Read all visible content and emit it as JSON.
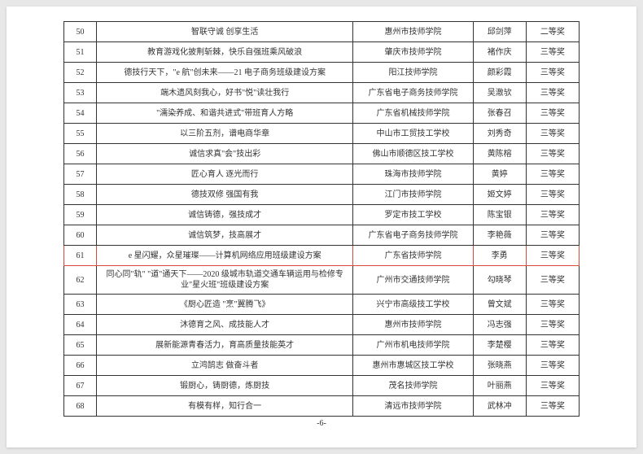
{
  "pageNumber": "-6-",
  "highlightRow": 61,
  "columns": {
    "widths": [
      "38px",
      "300px",
      "140px",
      "62px",
      "62px"
    ]
  },
  "rows": [
    {
      "num": "50",
      "title": "智联守诚 创享生活",
      "school": "惠州市技师学院",
      "person": "邱剑萍",
      "award": "二等奖"
    },
    {
      "num": "51",
      "title": "教育游戏化披荆斩棘，快乐自强班乘风破浪",
      "school": "肇庆市技师学院",
      "person": "褚作庆",
      "award": "三等奖"
    },
    {
      "num": "52",
      "title": "德技行天下，\"e 航\"创未来——21 电子商务班级建设方案",
      "school": "阳江技师学院",
      "person": "颜彩霞",
      "award": "三等奖"
    },
    {
      "num": "53",
      "title": "端木遗风刻我心，好书\"悦\"读壮我行",
      "school": "广东省电子商务技师学院",
      "person": "吴澈欤",
      "award": "三等奖"
    },
    {
      "num": "54",
      "title": "\"濡染养成、和谐共进式\"带班育人方略",
      "school": "广东省机械技师学院",
      "person": "张春召",
      "award": "三等奖"
    },
    {
      "num": "55",
      "title": "以三阶五剂，谱电商华章",
      "school": "中山市工贸技工学校",
      "person": "刘秀奇",
      "award": "三等奖"
    },
    {
      "num": "56",
      "title": "诚信求真\"会\"技出彩",
      "school": "佛山市顺德区技工学校",
      "person": "黄陈榕",
      "award": "三等奖"
    },
    {
      "num": "57",
      "title": "匠心育人 逐光而行",
      "school": "珠海市技师学院",
      "person": "黄婷",
      "award": "三等奖"
    },
    {
      "num": "58",
      "title": "德技双修 强国有我",
      "school": "江门市技师学院",
      "person": "姬文婷",
      "award": "三等奖"
    },
    {
      "num": "59",
      "title": "诚信铸德，强技成才",
      "school": "罗定市技工学校",
      "person": "陈宝银",
      "award": "三等奖"
    },
    {
      "num": "60",
      "title": "诚信筑梦，技高展才",
      "school": "广东省电子商务技师学院",
      "person": "李艳薇",
      "award": "三等奖"
    },
    {
      "num": "61",
      "title": "e 星闪耀，众星璀璨——计算机网络应用班级建设方案",
      "school": "广东省技师学院",
      "person": "李勇",
      "award": "三等奖"
    },
    {
      "num": "62",
      "title": "同心同\"轨\" \"道\"通天下——2020 级城市轨道交通车辆运用与检修专业\"星火班\"班级建设方案",
      "school": "广州市交通技师学院",
      "person": "勾晓琴",
      "award": "三等奖"
    },
    {
      "num": "63",
      "title": "《厨心匠造 \"烹\"翼腾飞》",
      "school": "兴宁市高级技工学校",
      "person": "曾文斌",
      "award": "三等奖"
    },
    {
      "num": "64",
      "title": "沐德育之风、成技能人才",
      "school": "惠州市技师学院",
      "person": "冯志强",
      "award": "三等奖"
    },
    {
      "num": "65",
      "title": "展新能源青春活力，育高质量技能英才",
      "school": "广州市机电技师学院",
      "person": "李楚樱",
      "award": "三等奖"
    },
    {
      "num": "66",
      "title": "立鸿鹄志 做奋斗者",
      "school": "惠州市惠城区技工学校",
      "person": "张晓燕",
      "award": "三等奖"
    },
    {
      "num": "67",
      "title": "锻厨心，铸厨德，炼厨技",
      "school": "茂名技师学院",
      "person": "叶丽燕",
      "award": "三等奖"
    },
    {
      "num": "68",
      "title": "有模有样，知行合一",
      "school": "清远市技师学院",
      "person": "武林冲",
      "award": "三等奖"
    }
  ]
}
